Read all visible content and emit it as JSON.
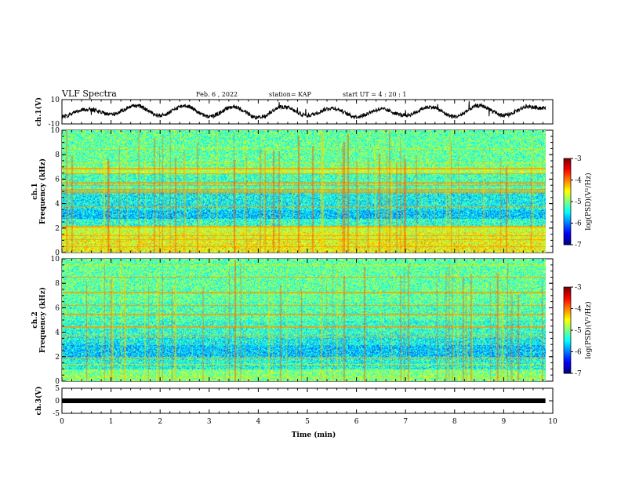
{
  "header": {
    "title": "VLF Spectra",
    "date": "Feb. 6 , 2022",
    "station": "station= KAP",
    "start": "start UT = 4 : 20 : 1"
  },
  "chart_data": [
    {
      "type": "line",
      "panel": "ch1-waveform",
      "ylabel": "ch.1(V)",
      "ylim": [
        -10,
        10
      ],
      "yticks": [
        10,
        -10
      ],
      "xlim": [
        0,
        10
      ],
      "x_end": 9.85,
      "description_values": {
        "x": [
          0,
          0.5,
          1,
          1.5,
          2,
          2.5,
          3,
          3.5,
          4,
          4.5,
          5,
          5.5,
          6,
          6.5,
          7,
          7.5,
          8,
          8.5,
          9,
          9.5,
          9.85
        ],
        "y": [
          -4,
          2,
          -2,
          5,
          -3,
          5,
          -4,
          4,
          -5,
          4,
          -3,
          3,
          -4,
          2,
          -3,
          4,
          -4,
          5,
          -3,
          4,
          3
        ]
      }
    },
    {
      "type": "heatmap",
      "panel": "ch1-spectrogram",
      "ylabel": "ch.1\nFrequency (kHz)",
      "ylim": [
        0,
        10
      ],
      "yticks": [
        0,
        2,
        4,
        6,
        8,
        10
      ],
      "xlim": [
        0,
        10
      ],
      "x_end": 9.85,
      "colorbar": {
        "label": "log(PSD)(V²/Hz)",
        "range": [
          -7,
          -3
        ],
        "ticks": [
          -3,
          -4,
          -5,
          -6,
          -7
        ]
      }
    },
    {
      "type": "heatmap",
      "panel": "ch2-spectrogram",
      "ylabel": "ch.2\nFrequency (kHz)",
      "ylim": [
        0,
        10
      ],
      "yticks": [
        0,
        2,
        4,
        6,
        8,
        10
      ],
      "xlim": [
        0,
        10
      ],
      "x_end": 9.85,
      "colorbar": {
        "label": "log(PSD)(V²/Hz)",
        "range": [
          -7,
          -3
        ],
        "ticks": [
          -3,
          -4,
          -5,
          -6,
          -7
        ]
      }
    },
    {
      "type": "line",
      "panel": "ch3-waveform",
      "ylabel": "ch.3(V)",
      "ylim": [
        -5,
        5
      ],
      "yticks": [
        5,
        0,
        -5
      ],
      "xlim": [
        0,
        10
      ],
      "x_end": 9.85,
      "xlabel": "Time (min)",
      "xticks": [
        0,
        1,
        2,
        3,
        4,
        5,
        6,
        7,
        8,
        9,
        10
      ],
      "y": [
        0,
        0
      ]
    }
  ]
}
